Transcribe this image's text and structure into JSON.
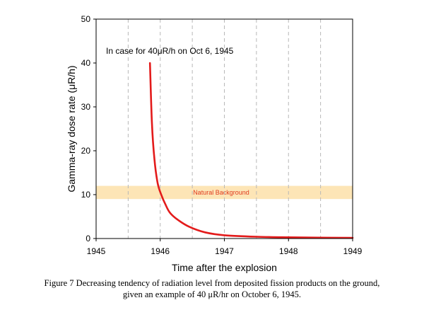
{
  "chart_data": {
    "type": "line",
    "xlabel": "Time after the explosion",
    "ylabel": "Gamma-ray dose rate (μR/h)",
    "xlim": [
      1945,
      1949
    ],
    "ylim": [
      0,
      50
    ],
    "x_ticks": [
      "1945",
      "1946",
      "1947",
      "1948",
      "1949"
    ],
    "y_ticks": [
      "0",
      "10",
      "20",
      "30",
      "40",
      "50"
    ],
    "grid": "vertical dashed at half-year intervals",
    "annotation": "In case for 40μR/h on Oct 6, 1945",
    "band": {
      "label": "Natural Background",
      "y_range": [
        9,
        12
      ],
      "color": "#fde5b6"
    },
    "series": [
      {
        "color": "#e31b1b",
        "x": [
          1945.84,
          1945.87,
          1945.91,
          1945.96,
          1946.02,
          1946.08,
          1946.15,
          1946.27,
          1946.45,
          1946.7,
          1947.0,
          1947.5,
          1948.0,
          1948.5,
          1949.0
        ],
        "y": [
          40,
          26.3,
          18,
          12.6,
          9.8,
          7.8,
          5.9,
          4.3,
          2.7,
          1.4,
          0.75,
          0.4,
          0.28,
          0.2,
          0.15
        ]
      }
    ]
  },
  "caption": {
    "line1": "Figure 7 Decreasing tendency of radiation level from deposited fission products on the ground,",
    "line2": "given an example of 40 μR/hr on October 6, 1945."
  }
}
